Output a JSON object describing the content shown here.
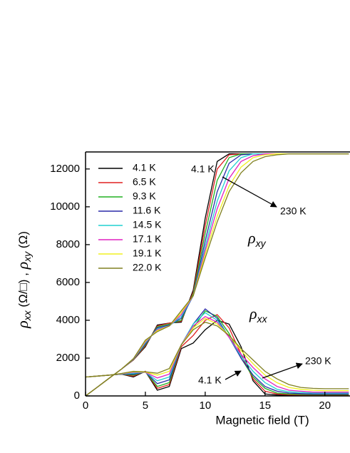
{
  "chart_data": {
    "type": "line",
    "x_label": "Magnetic field (T)",
    "y_label": [
      "ρ",
      "xx",
      " (Ω/□)  , ",
      "ρ",
      "xy",
      " (Ω)"
    ],
    "annotations": {
      "xy_low": "4.1 K",
      "xy_high": "230 K",
      "xx_low": "4.1 K",
      "xx_high": "230 K",
      "rho_xy": [
        "ρ",
        "xy"
      ],
      "rho_xx": [
        "ρ",
        "xx"
      ]
    },
    "x": [
      0,
      1,
      2,
      3,
      4,
      5,
      6,
      7,
      8,
      9,
      10,
      11,
      12,
      13,
      14,
      15,
      16,
      17,
      18,
      19,
      20,
      21,
      22
    ],
    "xlim": [
      0,
      22.1
    ],
    "ylim": [
      0,
      12900
    ],
    "xticks": [
      0,
      5,
      10,
      15,
      20
    ],
    "yticks": [
      0,
      2000,
      4000,
      6000,
      8000,
      10000,
      12000
    ],
    "series": [
      {
        "name": "4.1 K",
        "color": "#000000",
        "values": [
          0,
          470,
          950,
          1420,
          1900,
          2600,
          3750,
          3850,
          3900,
          5600,
          9400,
          12400,
          12800,
          12800,
          12800,
          12800,
          12800,
          12800,
          12800,
          12800,
          12800,
          12800,
          12800
        ],
        "rho_xx": [
          1000,
          1050,
          1100,
          1150,
          1000,
          1300,
          300,
          500,
          2500,
          2800,
          3500,
          4000,
          3800,
          2600,
          800,
          100,
          50,
          30,
          30,
          30,
          30,
          30,
          30
        ]
      },
      {
        "name": "6.5 K",
        "color": "#e02020",
        "values": [
          0,
          470,
          950,
          1420,
          1900,
          2650,
          3700,
          3850,
          3950,
          5500,
          9000,
          12000,
          12750,
          12800,
          12800,
          12800,
          12800,
          12800,
          12800,
          12800,
          12800,
          12800,
          12800
        ],
        "rho_xx": [
          1000,
          1050,
          1100,
          1150,
          1050,
          1300,
          400,
          600,
          2600,
          3200,
          4000,
          4300,
          3600,
          2200,
          900,
          250,
          100,
          60,
          50,
          50,
          50,
          50,
          50
        ]
      },
      {
        "name": "9.3 K",
        "color": "#20b020",
        "values": [
          0,
          470,
          950,
          1420,
          1920,
          2700,
          3650,
          3800,
          4000,
          5400,
          8600,
          11400,
          12600,
          12800,
          12800,
          12800,
          12800,
          12800,
          12800,
          12800,
          12800,
          12800,
          12800
        ],
        "rho_xx": [
          1000,
          1050,
          1100,
          1150,
          1100,
          1280,
          500,
          700,
          2700,
          3600,
          4500,
          4200,
          3300,
          2000,
          1000,
          400,
          150,
          100,
          80,
          70,
          70,
          70,
          70
        ]
      },
      {
        "name": "11.6 K",
        "color": "#2a2aa8",
        "values": [
          0,
          470,
          950,
          1420,
          1930,
          2750,
          3600,
          3750,
          4100,
          5300,
          8200,
          10800,
          12300,
          12750,
          12800,
          12800,
          12800,
          12800,
          12800,
          12800,
          12800,
          12800,
          12800
        ],
        "rho_xx": [
          1000,
          1050,
          1100,
          1150,
          1150,
          1260,
          650,
          850,
          2700,
          3800,
          4600,
          4100,
          3100,
          2000,
          1100,
          500,
          250,
          150,
          120,
          100,
          100,
          100,
          100
        ]
      },
      {
        "name": "14.5 K",
        "color": "#20d0d0",
        "values": [
          0,
          470,
          950,
          1420,
          1940,
          2800,
          3550,
          3700,
          4200,
          5300,
          7900,
          10300,
          11900,
          12600,
          12800,
          12800,
          12800,
          12800,
          12800,
          12800,
          12800,
          12800,
          12800
        ],
        "rho_xx": [
          1000,
          1050,
          1100,
          1160,
          1200,
          1250,
          800,
          1000,
          2700,
          3800,
          4400,
          4000,
          3100,
          2100,
          1300,
          700,
          350,
          220,
          180,
          150,
          150,
          150,
          150
        ]
      },
      {
        "name": "17.1 K",
        "color": "#e020c0",
        "values": [
          0,
          470,
          950,
          1420,
          1950,
          2850,
          3500,
          3700,
          4300,
          5300,
          7700,
          9900,
          11500,
          12400,
          12700,
          12800,
          12800,
          12800,
          12800,
          12800,
          12800,
          12800,
          12800
        ],
        "rho_xx": [
          1000,
          1050,
          1100,
          1170,
          1250,
          1250,
          950,
          1150,
          2700,
          3700,
          4200,
          3900,
          3100,
          2200,
          1500,
          900,
          500,
          300,
          250,
          200,
          200,
          200,
          200
        ]
      },
      {
        "name": "19.1 K",
        "color": "#f0f020",
        "values": [
          0,
          470,
          950,
          1420,
          1960,
          2900,
          3450,
          3700,
          4400,
          5300,
          7500,
          9500,
          11100,
          12100,
          12600,
          12750,
          12800,
          12800,
          12800,
          12800,
          12800,
          12800,
          12800
        ],
        "rho_xx": [
          1000,
          1050,
          1100,
          1180,
          1280,
          1260,
          1100,
          1300,
          2700,
          3600,
          4100,
          3800,
          3200,
          2400,
          1700,
          1100,
          700,
          450,
          350,
          300,
          280,
          280,
          280
        ]
      },
      {
        "name": "22.0 K",
        "color": "#808020",
        "values": [
          0,
          470,
          950,
          1420,
          1970,
          2950,
          3400,
          3700,
          4500,
          5300,
          7300,
          9200,
          10800,
          11800,
          12400,
          12650,
          12750,
          12800,
          12800,
          12800,
          12800,
          12800,
          12800
        ],
        "rho_xx": [
          1000,
          1050,
          1100,
          1190,
          1300,
          1280,
          1200,
          1450,
          2700,
          3500,
          3900,
          3700,
          3200,
          2500,
          1900,
          1300,
          900,
          600,
          450,
          400,
          380,
          380,
          380
        ]
      }
    ]
  }
}
